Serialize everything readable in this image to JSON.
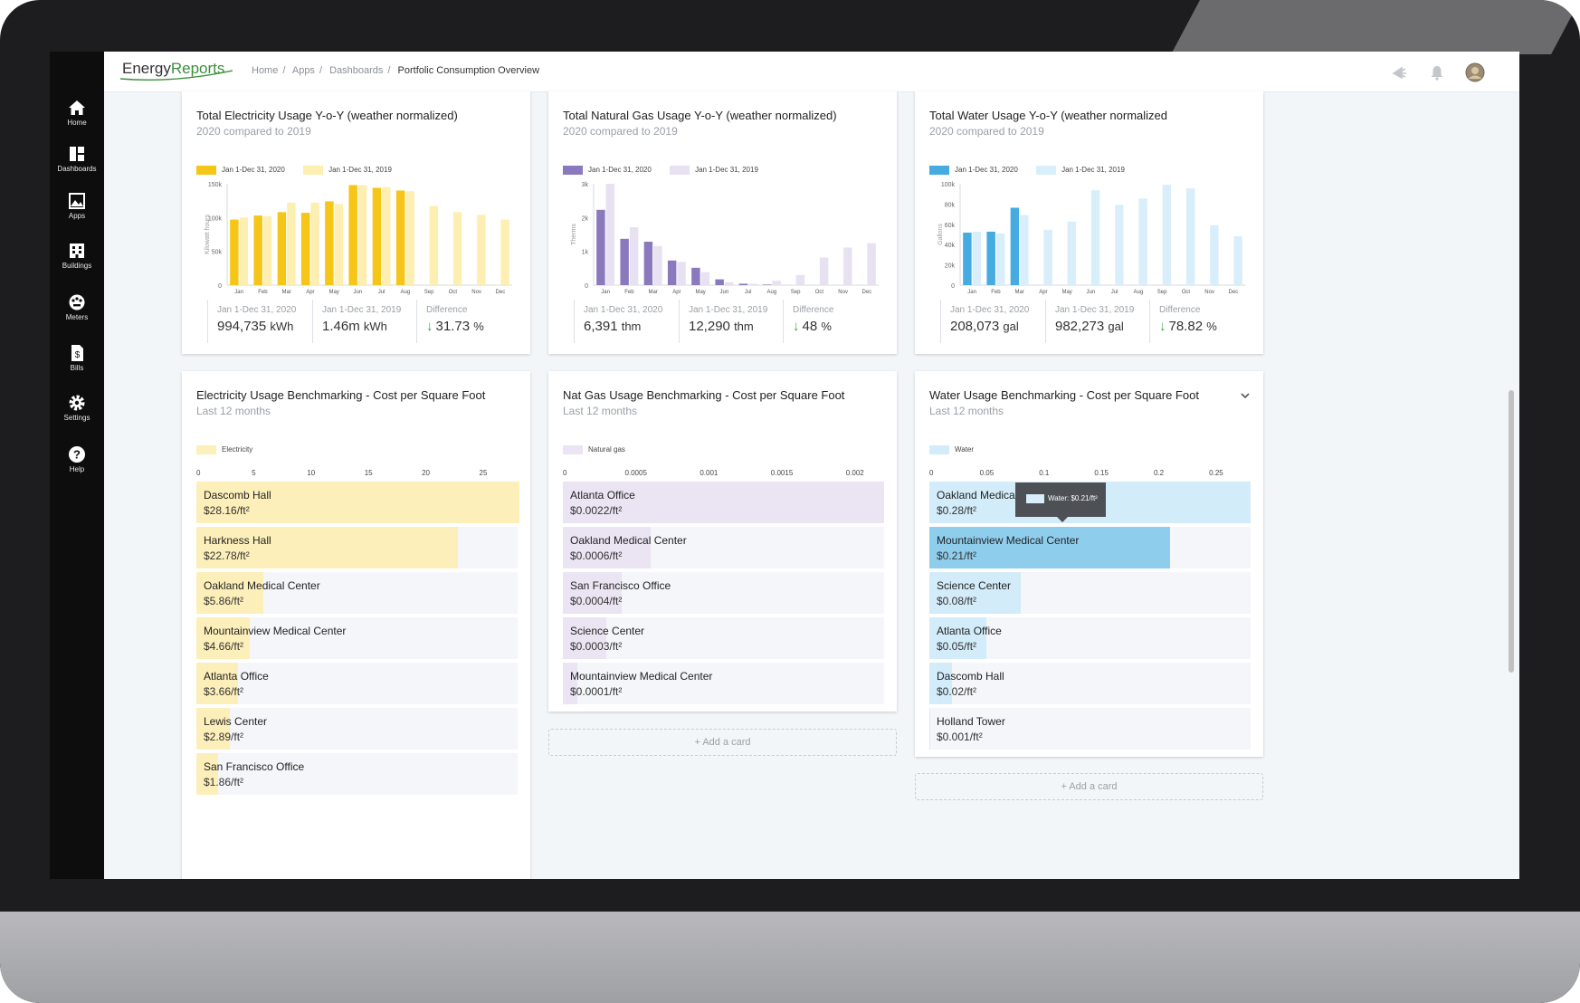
{
  "app": {
    "logo_main": "Energy",
    "logo_accent": "Reports"
  },
  "breadcrumb": {
    "items": [
      "Home",
      "Apps",
      "Dashboards"
    ],
    "current": "Portfolic Consumption Overview"
  },
  "sidebar": {
    "items": [
      {
        "label": "Home",
        "icon": "home-icon"
      },
      {
        "label": "Dashboards",
        "icon": "dashboard-icon"
      },
      {
        "label": "Apps",
        "icon": "apps-icon"
      },
      {
        "label": "Buildings",
        "icon": "building-icon"
      },
      {
        "label": "Meters",
        "icon": "meter-icon"
      },
      {
        "label": "Bills",
        "icon": "bill-icon"
      },
      {
        "label": "Settings",
        "icon": "gear-icon"
      },
      {
        "label": "Help",
        "icon": "help-icon"
      }
    ]
  },
  "colors": {
    "elec_2020": "#f5c518",
    "elec_2019": "#fdeeb1",
    "gas_2020": "#8b79bd",
    "gas_2019": "#e8e1f1",
    "water_2020": "#45abe0",
    "water_2019": "#d9eefb",
    "elec_bench": "#fdefb9",
    "gas_bench": "#ebe5f3",
    "water_bench": "#d3ecf9",
    "water_highlight": "#8ecdec"
  },
  "yoy_cards": [
    {
      "title": "Total Electricity Usage Y-o-Y (weather normalized)",
      "subtitle": "2020 compared to 2019",
      "legend_a": "Jan 1-Dec 31, 2020",
      "legend_b": "Jan 1-Dec 31, 2019",
      "stat1_date": "Jan 1-Dec 31, 2020",
      "stat1_value": "994,735",
      "stat1_unit": "kWh",
      "stat2_date": "Jan 1-Dec 31, 2019",
      "stat2_value": "1.46m",
      "stat2_unit": "kWh",
      "diff_label": "Difference",
      "diff_value": "31.73",
      "diff_unit": "%"
    },
    {
      "title": "Total Natural Gas Usage Y-o-Y (weather normalized)",
      "subtitle": "2020 compared to 2019",
      "legend_a": "Jan 1-Dec 31, 2020",
      "legend_b": "Jan 1-Dec 31, 2019",
      "stat1_date": "Jan 1-Dec 31, 2020",
      "stat1_value": "6,391",
      "stat1_unit": "thm",
      "stat2_date": "Jan 1-Dec 31, 2019",
      "stat2_value": "12,290",
      "stat2_unit": "thm",
      "diff_label": "Difference",
      "diff_value": "48",
      "diff_unit": "%"
    },
    {
      "title": "Total Water Usage Y-o-Y (weather normalized",
      "subtitle": "2020 compared to 2019",
      "legend_a": "Jan 1-Dec 31, 2020",
      "legend_b": "Jan 1-Dec 31, 2019",
      "stat1_date": "Jan 1-Dec 31, 2020",
      "stat1_value": "208,073",
      "stat1_unit": "gal",
      "stat2_date": "Jan 1-Dec 31, 2019",
      "stat2_value": "982,273",
      "stat2_unit": "gal",
      "diff_label": "Difference",
      "diff_value": "78.82",
      "diff_unit": "%"
    }
  ],
  "bench_cards": [
    {
      "title": "Electricity Usage Benchmarking - Cost per Square Foot",
      "subtitle": "Last 12 months",
      "legend": "Electricity"
    },
    {
      "title": "Nat Gas Usage Benchmarking - Cost per Square Foot",
      "subtitle": "Last 12 months",
      "legend": "Natural gas"
    },
    {
      "title": "Water Usage Benchmarking - Cost per Square Foot",
      "subtitle": "Last 12 months",
      "legend": "Water"
    }
  ],
  "add_card_label": "+ Add a card",
  "tooltip": {
    "text": "Water: $0.21/ft²"
  },
  "chart_data": [
    {
      "type": "bar",
      "categories": [
        "Jan",
        "Feb",
        "Mar",
        "Apr",
        "May",
        "Jun",
        "Jul",
        "Aug",
        "Sep",
        "Oct",
        "Nov",
        "Dec"
      ],
      "ylabel": "Kilowatt hours",
      "ylim": [
        0,
        150000
      ],
      "yticks": [
        "0",
        "50k",
        "100k",
        "150k"
      ],
      "series": [
        {
          "name": "Jan 1-Dec 31, 2020",
          "values": [
            97000,
            103000,
            108000,
            107000,
            124000,
            148000,
            144000,
            140000,
            null,
            null,
            null,
            null
          ]
        },
        {
          "name": "Jan 1-Dec 31, 2019",
          "values": [
            100000,
            102000,
            122000,
            122000,
            120000,
            148000,
            145000,
            139000,
            117000,
            108000,
            104000,
            97000
          ]
        }
      ]
    },
    {
      "type": "bar",
      "categories": [
        "Jan",
        "Feb",
        "Mar",
        "Apr",
        "May",
        "Jun",
        "Jul",
        "Aug",
        "Sep",
        "Oct",
        "Nov",
        "Dec"
      ],
      "ylabel": "Therms",
      "ylim": [
        0,
        3500
      ],
      "yticks": [
        "0",
        "1k",
        "2k",
        "3k"
      ],
      "series": [
        {
          "name": "Jan 1-Dec 31, 2020",
          "values": [
            2600,
            1600,
            1500,
            850,
            600,
            200,
            50,
            20,
            null,
            null,
            null,
            null
          ]
        },
        {
          "name": "Jan 1-Dec 31, 2019",
          "values": [
            3500,
            2000,
            1350,
            800,
            450,
            100,
            50,
            150,
            350,
            950,
            1300,
            1450
          ]
        }
      ]
    },
    {
      "type": "bar",
      "categories": [
        "Jan",
        "Feb",
        "Mar",
        "Apr",
        "May",
        "Jun",
        "Jul",
        "Aug",
        "Sep",
        "Oct",
        "Nov",
        "Dec"
      ],
      "ylabel": "Gallons",
      "ylim": [
        0,
        110000
      ],
      "yticks": [
        "0",
        "20k",
        "40k",
        "60k",
        "80k",
        "100k"
      ],
      "series": [
        {
          "name": "Jan 1-Dec 31, 2020",
          "values": [
            57000,
            58000,
            84000,
            null,
            null,
            null,
            null,
            null,
            null,
            null,
            null,
            null
          ]
        },
        {
          "name": "Jan 1-Dec 31, 2019",
          "values": [
            58000,
            56000,
            76000,
            60000,
            69000,
            103000,
            87000,
            94000,
            109000,
            105000,
            65000,
            53000
          ]
        }
      ]
    },
    {
      "type": "bar",
      "orientation": "horizontal",
      "xticks": [
        "0",
        "5",
        "10",
        "15",
        "20",
        "25"
      ],
      "xlim": [
        0,
        28
      ],
      "categories": [
        "Dascomb Hall",
        "Harkness Hall",
        "Oakland Medical Center",
        "Mountainview Medical Center",
        "Atlanta Office",
        "Lewis Center",
        "San Francisco Office"
      ],
      "values": [
        28.16,
        22.78,
        5.86,
        4.66,
        3.66,
        2.89,
        1.86
      ],
      "labels": [
        "$28.16/ft²",
        "$22.78/ft²",
        "$5.86/ft²",
        "$4.66/ft²",
        "$3.66/ft²",
        "$2.89/ft²",
        "$1.86/ft²"
      ]
    },
    {
      "type": "bar",
      "orientation": "horizontal",
      "xticks": [
        "0",
        "0.0005",
        "0.001",
        "0.0015",
        "0.002"
      ],
      "xlim": [
        0,
        0.0022
      ],
      "categories": [
        "Atlanta Office",
        "Oakland Medical Center",
        "San Francisco Office",
        "Science Center",
        "Mountainview Medical Center"
      ],
      "values": [
        0.0022,
        0.0006,
        0.0004,
        0.0003,
        0.0001
      ],
      "labels": [
        "$0.0022/ft²",
        "$0.0006/ft²",
        "$0.0004/ft²",
        "$0.0003/ft²",
        "$0.0001/ft²"
      ]
    },
    {
      "type": "bar",
      "orientation": "horizontal",
      "xticks": [
        "0",
        "0.05",
        "0.1",
        "0.15",
        "0.2",
        "0.25"
      ],
      "xlim": [
        0,
        0.28
      ],
      "categories": [
        "Oakland Medical Center",
        "Mountainview Medical Center",
        "Science Center",
        "Atlanta Office",
        "Dascomb Hall",
        "Holland Tower"
      ],
      "values": [
        0.28,
        0.21,
        0.08,
        0.05,
        0.02,
        0.001
      ],
      "labels": [
        "$0.28/ft²",
        "$0.21/ft²",
        "$0.08/ft²",
        "$0.05/ft²",
        "$0.02/ft²",
        "$0.001/ft²"
      ],
      "highlight_index": 1
    }
  ]
}
